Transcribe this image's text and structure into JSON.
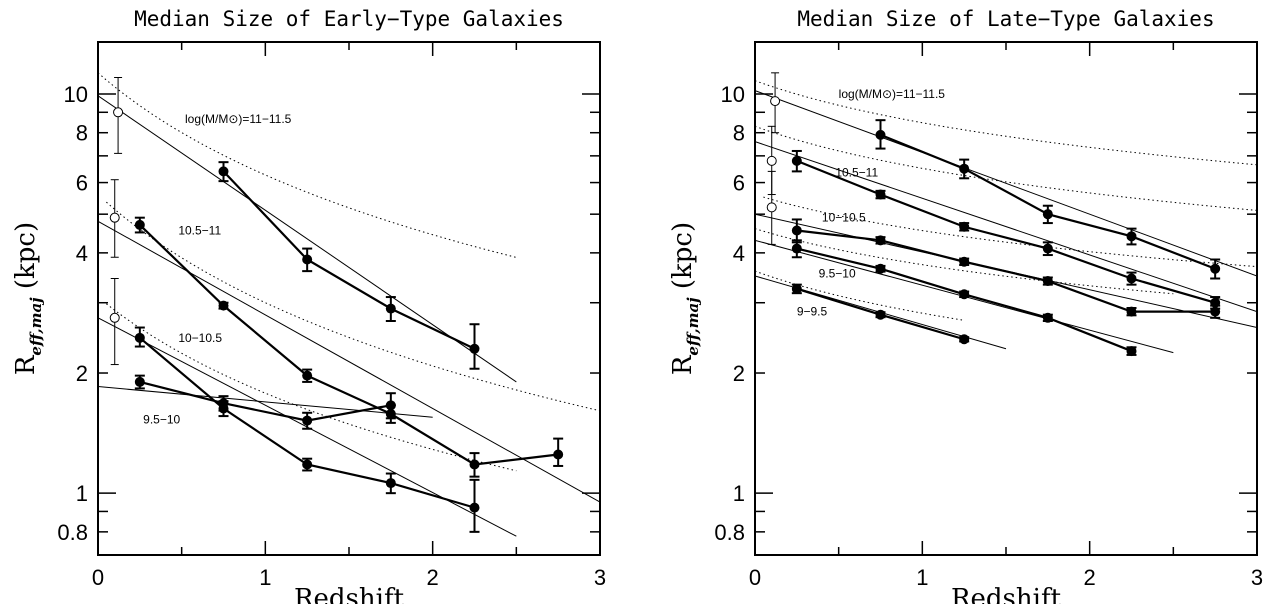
{
  "chart_data": [
    {
      "type": "line",
      "title": "Median Size of Early−Type Galaxies",
      "xlabel": "Redshift",
      "ylabel": "R",
      "ylabel_sub": "eff,maj",
      "ylabel_unit": " (kpc)",
      "xlim": [
        0,
        3
      ],
      "ylim": [
        0.7,
        13.5
      ],
      "yscale": "log",
      "xticks": [
        0,
        1,
        2,
        3
      ],
      "yticks": [
        0.8,
        1,
        2,
        4,
        6,
        8,
        10
      ],
      "grid": false,
      "series": [
        {
          "name": "log(M/M⊙)=11−11.5",
          "x": [
            0.75,
            1.25,
            1.75,
            2.25
          ],
          "y": [
            6.4,
            3.85,
            2.9,
            2.3
          ],
          "yerr_low": [
            0.35,
            0.25,
            0.2,
            0.25
          ],
          "yerr_high": [
            0.35,
            0.25,
            0.2,
            0.35
          ],
          "open_point": {
            "x": 0.12,
            "y": 9.0,
            "err_low": 1.9,
            "err_high": 2.0
          },
          "fit": {
            "x0": 0,
            "x1": 2.5,
            "y0": 9.9,
            "y1": 1.9
          },
          "fit_dotted": {
            "x0": 0,
            "x1": 2.5,
            "y0": 11.3,
            "a": 0.85
          }
        },
        {
          "name": "10.5−11",
          "x": [
            0.25,
            0.75,
            1.25,
            1.75,
            2.25,
            2.75
          ],
          "y": [
            4.7,
            2.95,
            1.97,
            1.58,
            1.18,
            1.25
          ],
          "yerr_low": [
            0.2,
            0.05,
            0.07,
            0.08,
            0.08,
            0.08
          ],
          "yerr_high": [
            0.2,
            0.05,
            0.07,
            0.08,
            0.08,
            0.12
          ],
          "open_point": {
            "x": 0.1,
            "y": 4.9,
            "err_low": 1.0,
            "err_high": 1.2
          },
          "fit": {
            "x0": 0,
            "x1": 3,
            "y0": 4.8,
            "y1": 0.95
          },
          "fit_dotted": {
            "x0": 0.05,
            "x1": 3,
            "y0": 5.6,
            "a": 0.9
          }
        },
        {
          "name": "10−10.5",
          "x": [
            0.25,
            0.75,
            1.25,
            1.75,
            2.25
          ],
          "y": [
            2.45,
            1.63,
            1.18,
            1.06,
            0.92
          ],
          "yerr_low": [
            0.12,
            0.07,
            0.04,
            0.06,
            0.12
          ],
          "yerr_high": [
            0.15,
            0.07,
            0.04,
            0.06,
            0.16
          ],
          "open_point": {
            "x": 0.1,
            "y": 2.75,
            "err_low": 0.65,
            "err_high": 0.7
          },
          "fit": {
            "x0": 0,
            "x1": 2.5,
            "y0": 2.75,
            "y1": 0.78
          },
          "fit_dotted": {
            "x0": 0.05,
            "x1": 2.5,
            "y0": 3.1,
            "a": 0.8
          }
        },
        {
          "name": "9.5−10",
          "x": [
            0.25,
            0.75,
            1.25,
            1.75
          ],
          "y": [
            1.9,
            1.68,
            1.52,
            1.66
          ],
          "yerr_low": [
            0.07,
            0.07,
            0.07,
            0.12
          ],
          "yerr_high": [
            0.07,
            0.07,
            0.07,
            0.12
          ],
          "fit": {
            "x0": 0,
            "x1": 2,
            "y0": 1.85,
            "y1": 1.55
          }
        }
      ],
      "annotations": [
        {
          "text": "log(M/M⊙)=11−11.5",
          "x": 0.52,
          "y": 8.65
        },
        {
          "text": "10.5−11",
          "x": 0.48,
          "y": 4.55
        },
        {
          "text": "10−10.5",
          "x": 0.48,
          "y": 2.45
        },
        {
          "text": "9.5−10",
          "x": 0.27,
          "y": 1.53
        }
      ]
    },
    {
      "type": "line",
      "title": "Median Size of Late−Type Galaxies",
      "xlabel": "Redshift",
      "ylabel": "R",
      "ylabel_sub": "eff,maj",
      "ylabel_unit": " (kpc)",
      "xlim": [
        0,
        3
      ],
      "ylim": [
        0.7,
        13.5
      ],
      "yscale": "log",
      "xticks": [
        0,
        1,
        2,
        3
      ],
      "yticks": [
        0.8,
        1,
        2,
        4,
        6,
        8,
        10
      ],
      "grid": false,
      "series": [
        {
          "name": "log(M/M⊙)=11−11.5",
          "x": [
            0.75,
            1.25,
            1.75,
            2.25,
            2.75
          ],
          "y": [
            7.9,
            6.5,
            5.0,
            4.4,
            3.65
          ],
          "yerr_low": [
            0.6,
            0.35,
            0.25,
            0.2,
            0.2
          ],
          "yerr_high": [
            0.7,
            0.35,
            0.25,
            0.2,
            0.2
          ],
          "open_point": {
            "x": 0.12,
            "y": 9.6,
            "err_low": 1.6,
            "err_high": 1.7
          },
          "fit": {
            "x0": 0,
            "x1": 3,
            "y0": 10.2,
            "y1": 3.5
          },
          "fit_dotted": {
            "x0": 0,
            "x1": 3,
            "y0": 10.8,
            "a": 0.35
          }
        },
        {
          "name": "10.5−11",
          "x": [
            0.25,
            0.75,
            1.25,
            1.75,
            2.25,
            2.75
          ],
          "y": [
            6.8,
            5.6,
            4.65,
            4.1,
            3.45,
            3.0
          ],
          "yerr_low": [
            0.4,
            0.12,
            0.1,
            0.15,
            0.12,
            0.1
          ],
          "yerr_high": [
            0.4,
            0.12,
            0.1,
            0.15,
            0.12,
            0.1
          ],
          "open_point": {
            "x": 0.1,
            "y": 6.8,
            "err_low": 1.2,
            "err_high": 1.5
          },
          "fit": {
            "x0": 0,
            "x1": 3,
            "y0": 7.6,
            "y1": 2.85
          },
          "fit_dotted": {
            "x0": 0,
            "x1": 3,
            "y0": 8.3,
            "a": 0.35
          }
        },
        {
          "name": "10−10.5",
          "x": [
            0.25,
            0.75,
            1.25,
            1.75,
            2.25,
            2.75
          ],
          "y": [
            4.55,
            4.3,
            3.8,
            3.4,
            2.85,
            2.85
          ],
          "yerr_low": [
            0.3,
            0.08,
            0.07,
            0.07,
            0.06,
            0.1
          ],
          "yerr_high": [
            0.3,
            0.08,
            0.07,
            0.07,
            0.06,
            0.1
          ],
          "open_point": {
            "x": 0.1,
            "y": 5.2,
            "err_low": 1.0,
            "err_high": 1.2
          },
          "fit": {
            "x0": 0,
            "x1": 3,
            "y0": 5.0,
            "y1": 2.6
          },
          "fit_dotted": {
            "x0": 0.05,
            "x1": 3,
            "y0": 5.6,
            "a": 0.3
          }
        },
        {
          "name": "9.5−10",
          "x": [
            0.25,
            0.75,
            1.25,
            1.75,
            2.25
          ],
          "y": [
            4.1,
            3.65,
            3.15,
            2.75,
            2.27
          ],
          "yerr_low": [
            0.2,
            0.06,
            0.05,
            0.05,
            0.05
          ],
          "yerr_high": [
            0.2,
            0.06,
            0.05,
            0.05,
            0.05
          ],
          "fit": {
            "x0": 0,
            "x1": 2.5,
            "y0": 4.3,
            "y1": 2.25
          },
          "fit_dotted": {
            "x0": 0,
            "x1": 2.5,
            "y0": 4.6,
            "a": 0.3
          }
        },
        {
          "name": "9−9.5",
          "x": [
            0.25,
            0.75,
            1.25
          ],
          "y": [
            3.25,
            2.8,
            2.43
          ],
          "yerr_low": [
            0.08,
            0.04,
            0.03
          ],
          "yerr_high": [
            0.08,
            0.04,
            0.03
          ],
          "fit": {
            "x0": 0,
            "x1": 1.5,
            "y0": 3.5,
            "y1": 2.3
          },
          "fit_dotted": {
            "x0": 0,
            "x1": 1.25,
            "y0": 3.6,
            "a": 0.35
          }
        }
      ],
      "annotations": [
        {
          "text": "log(M/M⊙)=11−11.5",
          "x": 0.5,
          "y": 10.0
        },
        {
          "text": "10.5−11",
          "x": 0.48,
          "y": 6.35
        },
        {
          "text": "10−10.5",
          "x": 0.4,
          "y": 4.9
        },
        {
          "text": "9.5−10",
          "x": 0.38,
          "y": 3.55
        },
        {
          "text": "9−9.5",
          "x": 0.25,
          "y": 2.85
        }
      ]
    }
  ]
}
